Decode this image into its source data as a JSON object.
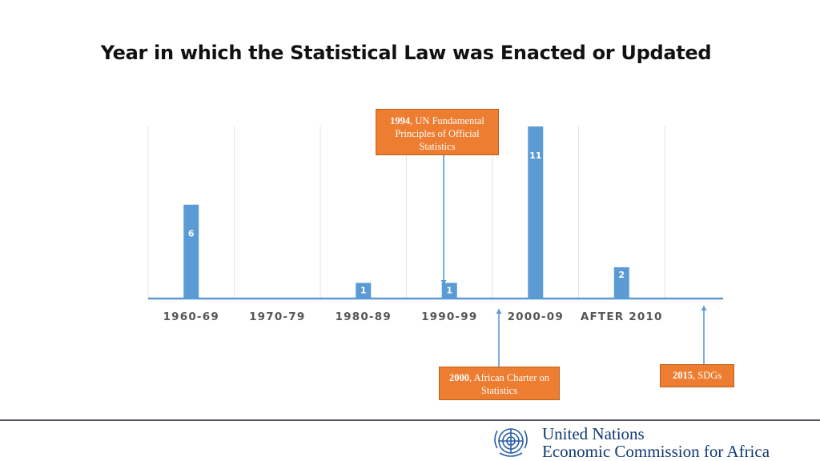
{
  "title": "Year in which the Statistical Law was Enacted or Updated",
  "chart_data": {
    "type": "bar",
    "title": "Year in which the Statistical Law was Enacted or Updated",
    "categories": [
      "1960-69",
      "1970-79",
      "1980-89",
      "1990-99",
      "2000-09",
      "AFTER 2010"
    ],
    "values": [
      6,
      0,
      1,
      1,
      11,
      2
    ],
    "data_labels": [
      "6",
      "",
      "1",
      "1",
      "11",
      "2"
    ],
    "ylim": [
      0,
      11
    ],
    "grid": "vertical",
    "bar_color": "#5B9BD5",
    "axis_color": "#5B9BD5",
    "annotations": [
      {
        "year": "1994",
        "text": ", UN Fundamental Principles of Official Statistics"
      },
      {
        "year": "2000",
        "text": ", African Charter on Statistics"
      },
      {
        "year": "2015",
        "text": ", SDGs"
      }
    ]
  },
  "callout_color": "#ED7D31",
  "footer": {
    "org_line1": "United Nations",
    "org_line2": "Economic Commission for Africa",
    "emblem": "un-emblem-icon"
  }
}
